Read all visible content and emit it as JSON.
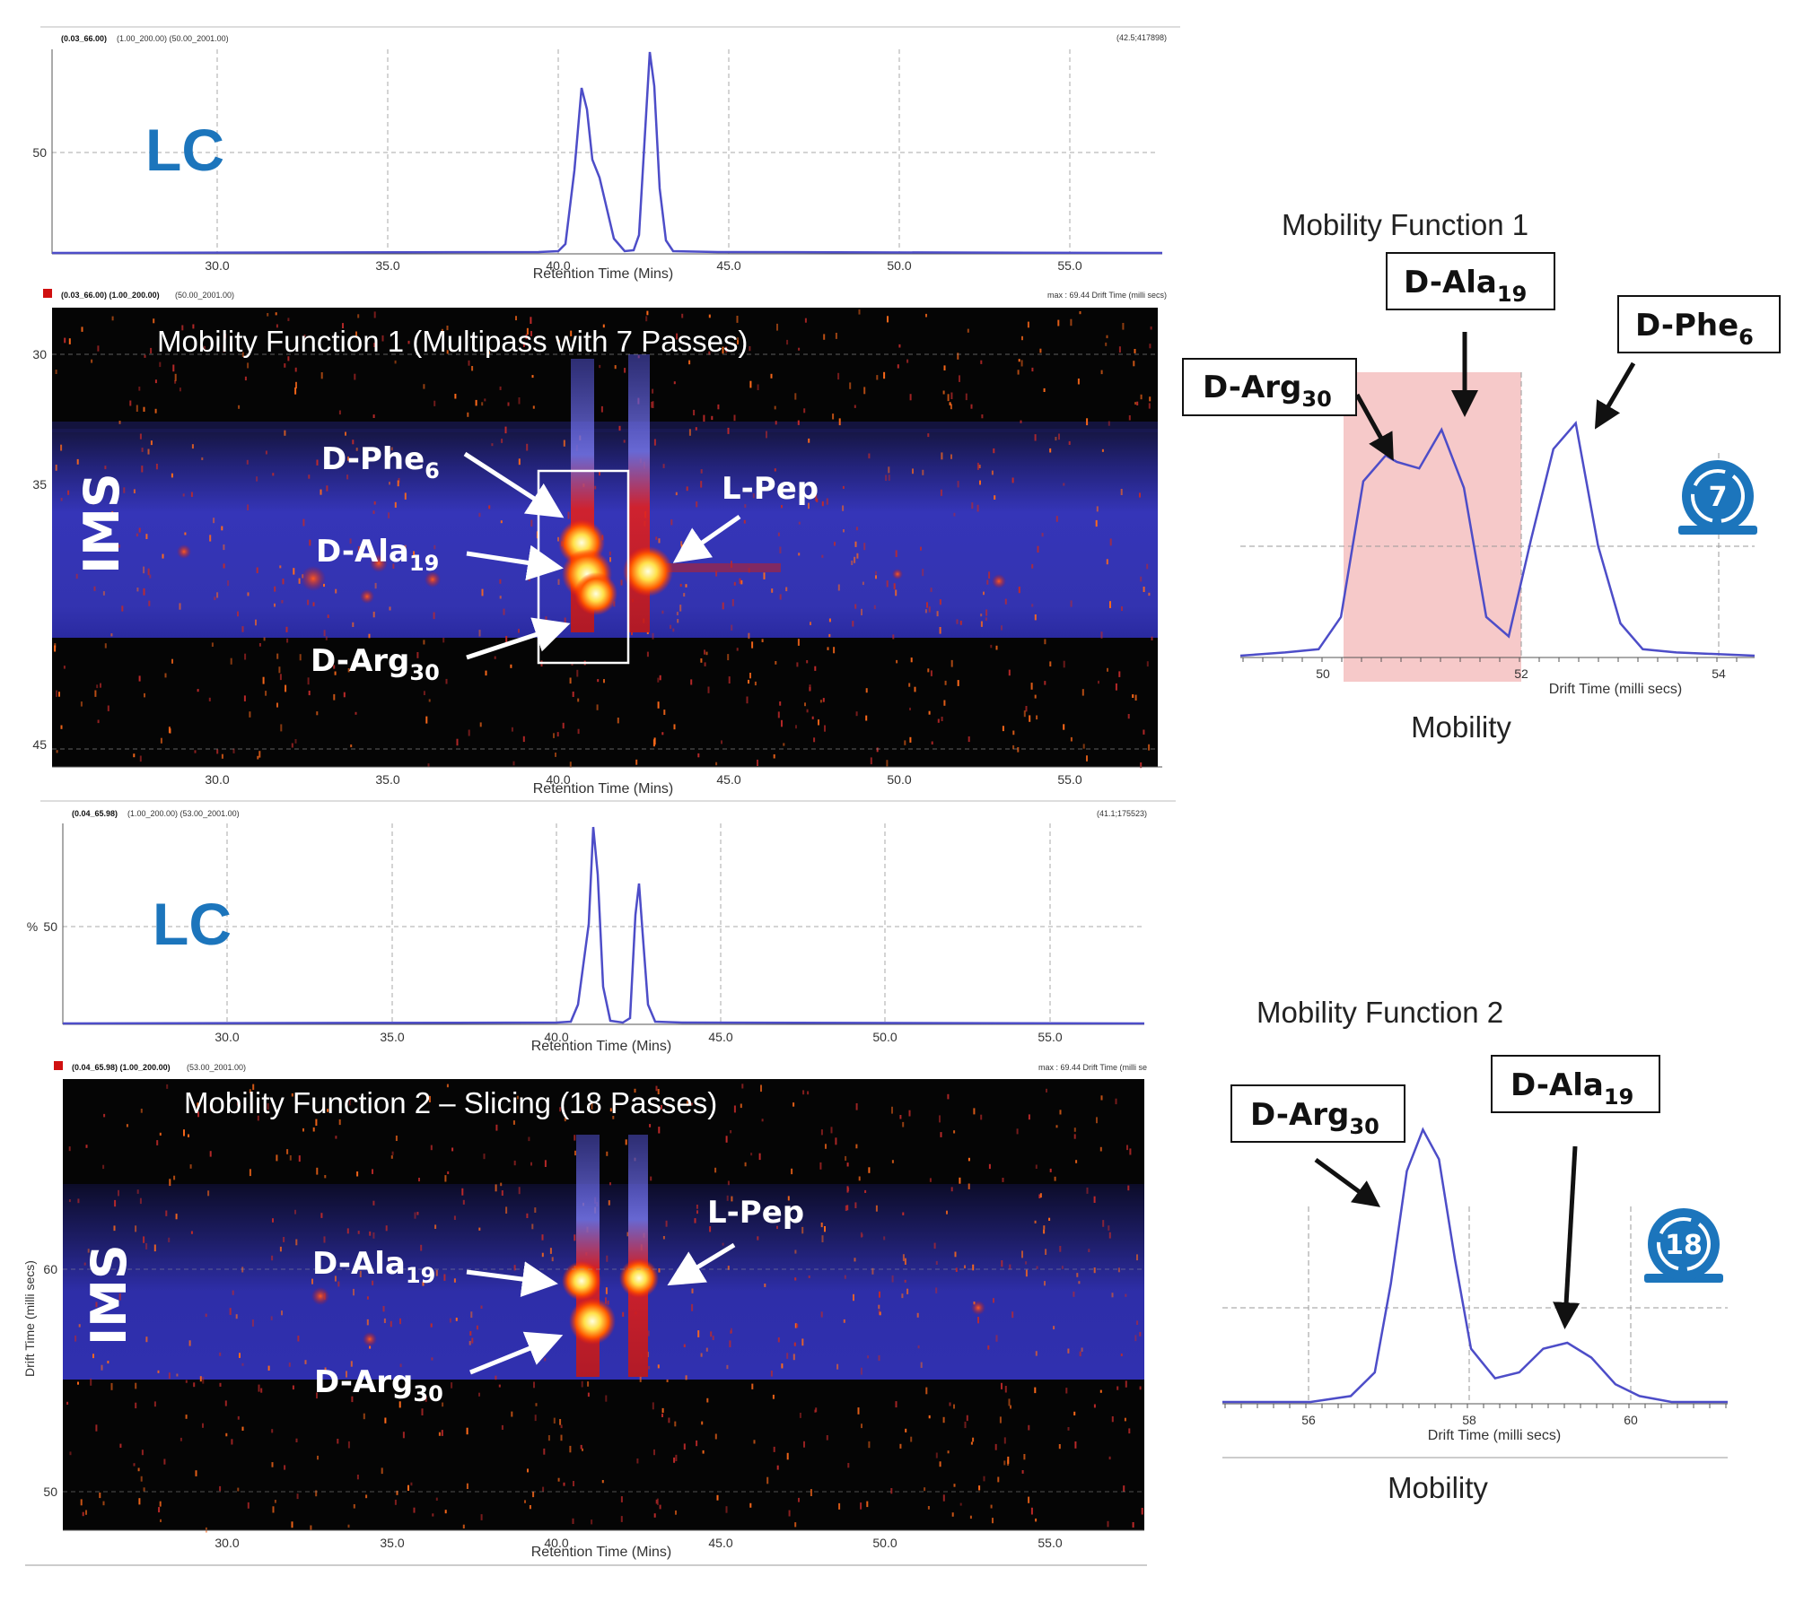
{
  "chart_data": [
    {
      "id": "lc1",
      "type": "line",
      "label": "LC",
      "header_left": "(0.03_66.00)",
      "header_left_extra": "(1.00_200.00) (50.00_2001.00)",
      "header_right": "(42.5;417898)",
      "xlabel": "Retention Time (Mins)",
      "xlim": [
        25.0,
        58.0
      ],
      "xticks": [
        "30.0",
        "35.0",
        "40.0",
        "45.0",
        "50.0",
        "55.0"
      ],
      "yticks": [
        "50"
      ],
      "peaks": [
        {
          "x": 40.8,
          "height": 0.77
        },
        {
          "x": 41.1,
          "height": 0.38
        },
        {
          "x": 42.5,
          "height": 1.0
        }
      ]
    },
    {
      "id": "ims1",
      "type": "heatmap",
      "label": "IMS",
      "title": "Mobility Function 1 (Multipass with 7 Passes)",
      "header_left": "(0.03_66.00) (1.00_200.00)",
      "header_left_extra": "(50.00_2001.00)",
      "header_right": "max : 69.44 Drift Time (milli secs)",
      "xlabel": "Retention Time (Mins)",
      "xlim": [
        25.0,
        58.0
      ],
      "xticks": [
        "30.0",
        "35.0",
        "40.0",
        "45.0",
        "50.0",
        "55.0"
      ],
      "yticks": [
        "30",
        "35",
        "45"
      ],
      "annotations": [
        "D-Phe",
        "D-Ala",
        "D-Arg",
        "L-Pep"
      ],
      "annotation_subs": [
        "6",
        "19",
        "30",
        ""
      ]
    },
    {
      "id": "lc2",
      "type": "line",
      "label": "LC",
      "ylabel": "%",
      "header_left": "(0.04_65.98)",
      "header_left_extra": "(1.00_200.00) (53.00_2001.00)",
      "header_right": "(41.1;175523)",
      "xlabel": "Retention Time (Mins)",
      "xlim": [
        25.0,
        53.0
      ],
      "xticks": [
        "30.0",
        "35.0",
        "40.0",
        "45.0",
        "50.0",
        "55.0"
      ],
      "yticks": [
        "50"
      ],
      "peaks": [
        {
          "x": 41.1,
          "height": 1.0
        },
        {
          "x": 42.5,
          "height": 0.7
        }
      ]
    },
    {
      "id": "ims2",
      "type": "heatmap",
      "label": "IMS",
      "title": "Mobility Function 2 – Slicing (18 Passes)",
      "header_left": "(0.04_65.98) (1.00_200.00)",
      "header_left_extra": "(53.00_2001.00)",
      "header_right": "max : 69.44 Drift Time (milli se",
      "ylabel": "Drift Time (milli secs)",
      "xlabel": "Retention Time (Mins)",
      "xlim": [
        25.0,
        53.0
      ],
      "xticks": [
        "30.0",
        "35.0",
        "40.0",
        "45.0",
        "50.0",
        "55.0"
      ],
      "yticks": [
        "60",
        "50"
      ],
      "annotations": [
        "D-Ala",
        "D-Arg",
        "L-Pep"
      ],
      "annotation_subs": [
        "19",
        "30",
        ""
      ]
    },
    {
      "id": "mob1",
      "type": "line",
      "title": "Mobility Function 1",
      "xlabel": "Drift Time (milli secs)",
      "footer": "Mobility",
      "xlim": [
        49.6,
        54.2
      ],
      "xticks": [
        "50",
        "52",
        "54"
      ],
      "x": [
        49.6,
        50.0,
        50.3,
        50.5,
        50.7,
        50.9,
        51.0,
        51.2,
        51.4,
        51.6,
        51.8,
        52.0,
        52.2,
        52.4,
        52.6,
        52.8,
        53.0,
        53.2,
        53.5,
        54.2
      ],
      "y": [
        0.0,
        0.01,
        0.02,
        0.12,
        0.54,
        0.62,
        0.6,
        0.58,
        0.7,
        0.52,
        0.12,
        0.06,
        0.36,
        0.64,
        0.72,
        0.34,
        0.1,
        0.02,
        0.01,
        0.0
      ],
      "peak_labels": [
        "D-Arg",
        "D-Ala",
        "D-Phe"
      ],
      "peak_label_subs": [
        "30",
        "19",
        "6"
      ],
      "highlight_xrange": [
        50.3,
        52.0
      ],
      "pass_count": "7"
    },
    {
      "id": "mob2",
      "type": "line",
      "title": "Mobility Function 2",
      "xlabel": "Drift Time (milli secs)",
      "footer": "Mobility",
      "xlim": [
        54.9,
        61.2
      ],
      "xticks": [
        "56",
        "58",
        "60"
      ],
      "x": [
        54.9,
        56.0,
        56.5,
        56.8,
        57.0,
        57.2,
        57.4,
        57.6,
        57.8,
        58.0,
        58.3,
        58.6,
        58.9,
        59.2,
        59.5,
        59.8,
        60.1,
        60.5,
        61.2
      ],
      "y": [
        0.0,
        0.0,
        0.02,
        0.1,
        0.4,
        0.78,
        0.92,
        0.82,
        0.48,
        0.18,
        0.08,
        0.1,
        0.18,
        0.2,
        0.15,
        0.06,
        0.02,
        0.0,
        0.0
      ],
      "peak_labels": [
        "D-Arg",
        "D-Ala"
      ],
      "peak_label_subs": [
        "30",
        "19"
      ],
      "pass_count": "18"
    }
  ],
  "colors": {
    "trace": "#4d4dc8",
    "lc_label": "#1c75bc",
    "badge": "#1c75bc",
    "highlight": "#f6c9c9",
    "heat_background": "#050505",
    "heat_band": "#3030a8",
    "heat_hot": "#ff2a00",
    "heat_peak": "#fff29a"
  }
}
